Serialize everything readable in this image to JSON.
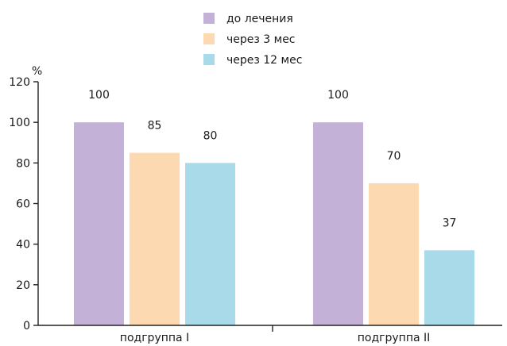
{
  "chart_data": {
    "type": "bar",
    "ylabel": "%",
    "ylim": [
      0,
      120
    ],
    "yticks": [
      0,
      20,
      40,
      60,
      80,
      100,
      120
    ],
    "categories": [
      "подгруппа I",
      "подгруппа II"
    ],
    "legend_position": "top-center",
    "series": [
      {
        "name": "до лечения",
        "color": "#c4b1d8",
        "values": [
          100,
          100
        ]
      },
      {
        "name": "через 3 мес",
        "color": "#fcd9b1",
        "values": [
          85,
          70
        ]
      },
      {
        "name": "через 12 мес",
        "color": "#a8dae9",
        "values": [
          80,
          37
        ]
      }
    ]
  }
}
